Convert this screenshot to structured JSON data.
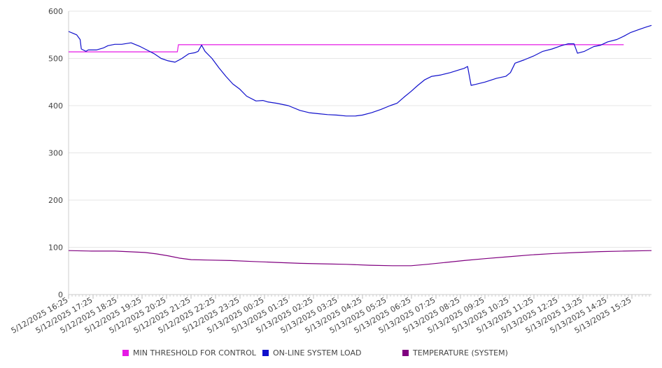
{
  "chart_data": {
    "type": "line",
    "title": "",
    "xlabel": "",
    "ylabel": "",
    "ylim": [
      0,
      600
    ],
    "yticks": [
      0,
      100,
      200,
      300,
      400,
      500,
      600
    ],
    "x_tick_labels": [
      "5/12/2025 16:25",
      "5/12/2025 17:25",
      "5/12/2025 18:25",
      "5/12/2025 19:25",
      "5/12/2025 20:25",
      "5/12/2025 21:25",
      "5/12/2025 22:25",
      "5/12/2025 23:25",
      "5/13/2025 00:25",
      "5/13/2025 01:25",
      "5/13/2025 02:25",
      "5/13/2025 03:25",
      "5/13/2025 04:25",
      "5/13/2025 05:25",
      "5/13/2025 06:25",
      "5/13/2025 07:25",
      "5/13/2025 08:25",
      "5/13/2025 09:25",
      "5/13/2025 10:25",
      "5/13/2025 11:25",
      "5/13/2025 12:25",
      "5/13/2025 13:25",
      "5/13/2025 14:25",
      "5/13/2025 15:25"
    ],
    "x_hours_span": 24,
    "grid": true,
    "legend_position": "bottom",
    "series": [
      {
        "name": "MIN THRESHOLD FOR CONTROL",
        "color": "#e619e6",
        "points": [
          [
            0,
            514
          ],
          [
            4.7,
            514
          ],
          [
            4.75,
            529
          ],
          [
            24,
            529
          ]
        ]
      },
      {
        "name": "ON-LINE SYSTEM LOAD",
        "color": "#1010cc",
        "points": [
          [
            0,
            557
          ],
          [
            0.2,
            553
          ],
          [
            0.35,
            550
          ],
          [
            0.5,
            540
          ],
          [
            0.55,
            520
          ],
          [
            0.75,
            515
          ],
          [
            0.85,
            518
          ],
          [
            1.2,
            518
          ],
          [
            1.5,
            522
          ],
          [
            1.7,
            527
          ],
          [
            2.0,
            530
          ],
          [
            2.3,
            530
          ],
          [
            2.7,
            533
          ],
          [
            3.1,
            525
          ],
          [
            3.5,
            515
          ],
          [
            3.7,
            510
          ],
          [
            4.0,
            500
          ],
          [
            4.3,
            495
          ],
          [
            4.6,
            492
          ],
          [
            4.9,
            500
          ],
          [
            5.2,
            510
          ],
          [
            5.45,
            512
          ],
          [
            5.6,
            515
          ],
          [
            5.75,
            528
          ],
          [
            5.9,
            515
          ],
          [
            6.2,
            500
          ],
          [
            6.5,
            480
          ],
          [
            6.8,
            462
          ],
          [
            7.1,
            446
          ],
          [
            7.4,
            435
          ],
          [
            7.7,
            420
          ],
          [
            8.1,
            410
          ],
          [
            8.4,
            411
          ],
          [
            8.6,
            408
          ],
          [
            9.0,
            405
          ],
          [
            9.5,
            400
          ],
          [
            10.0,
            390
          ],
          [
            10.4,
            385
          ],
          [
            10.8,
            383
          ],
          [
            11.2,
            381
          ],
          [
            11.6,
            380
          ],
          [
            12.0,
            378
          ],
          [
            12.4,
            378
          ],
          [
            12.7,
            380
          ],
          [
            13.1,
            385
          ],
          [
            13.5,
            392
          ],
          [
            13.9,
            400
          ],
          [
            14.2,
            405
          ],
          [
            14.5,
            418
          ],
          [
            14.8,
            430
          ],
          [
            15.1,
            443
          ],
          [
            15.4,
            455
          ],
          [
            15.7,
            462
          ],
          [
            16.1,
            465
          ],
          [
            16.5,
            470
          ],
          [
            16.9,
            476
          ],
          [
            17.1,
            479
          ],
          [
            17.25,
            483
          ],
          [
            17.4,
            443
          ],
          [
            17.6,
            445
          ],
          [
            18.0,
            450
          ],
          [
            18.5,
            458
          ],
          [
            18.9,
            462
          ],
          [
            19.1,
            470
          ],
          [
            19.3,
            490
          ],
          [
            19.7,
            497
          ],
          [
            20.1,
            505
          ],
          [
            20.5,
            515
          ],
          [
            20.9,
            520
          ],
          [
            21.3,
            527
          ],
          [
            21.6,
            531
          ],
          [
            21.85,
            531
          ],
          [
            22.0,
            511
          ],
          [
            22.3,
            515
          ],
          [
            22.7,
            525
          ],
          [
            23.0,
            528
          ],
          [
            23.3,
            535
          ],
          [
            23.7,
            540
          ],
          [
            24.0,
            547
          ],
          [
            24.3,
            555
          ],
          [
            24.7,
            562
          ],
          [
            25.0,
            567
          ],
          [
            25.2,
            570
          ]
        ]
      },
      {
        "name": "TEMPERATURE (SYSTEM)",
        "color": "#800080",
        "points": [
          [
            0,
            93
          ],
          [
            1.0,
            92
          ],
          [
            2.0,
            92
          ],
          [
            2.5,
            91
          ],
          [
            3.3,
            89
          ],
          [
            3.8,
            86
          ],
          [
            4.3,
            82
          ],
          [
            4.8,
            77
          ],
          [
            5.3,
            74
          ],
          [
            6.0,
            73
          ],
          [
            7.0,
            72
          ],
          [
            8.0,
            70
          ],
          [
            9.0,
            68
          ],
          [
            10.0,
            66
          ],
          [
            11.0,
            65
          ],
          [
            12.0,
            64
          ],
          [
            13.0,
            62
          ],
          [
            14.0,
            61
          ],
          [
            14.8,
            61
          ],
          [
            15.5,
            64
          ],
          [
            16.3,
            68
          ],
          [
            17.1,
            72
          ],
          [
            18.0,
            76
          ],
          [
            19.0,
            80
          ],
          [
            20.0,
            84
          ],
          [
            21.0,
            87
          ],
          [
            22.0,
            89
          ],
          [
            23.0,
            91
          ],
          [
            24.0,
            92
          ],
          [
            25.2,
            93
          ]
        ]
      }
    ]
  }
}
